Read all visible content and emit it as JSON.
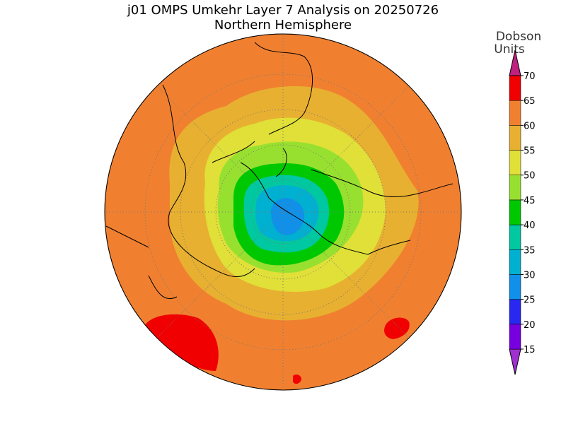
{
  "title": "j01 OMPS Umkehr Layer 7 Analysis on 20250726",
  "subtitle": "Northern Hemisphere",
  "colorbar": {
    "label": [
      "Dobson",
      "Units"
    ],
    "levels": [
      15,
      20,
      25,
      30,
      35,
      40,
      45,
      50,
      55,
      60,
      65,
      70
    ],
    "colors": [
      "#a030d0",
      "#7800e0",
      "#2828f0",
      "#1090e8",
      "#00b0d0",
      "#00c8a0",
      "#00c800",
      "#98e030",
      "#e0e038",
      "#e8b030",
      "#f08030",
      "#f00000",
      "#c02080"
    ]
  }
}
